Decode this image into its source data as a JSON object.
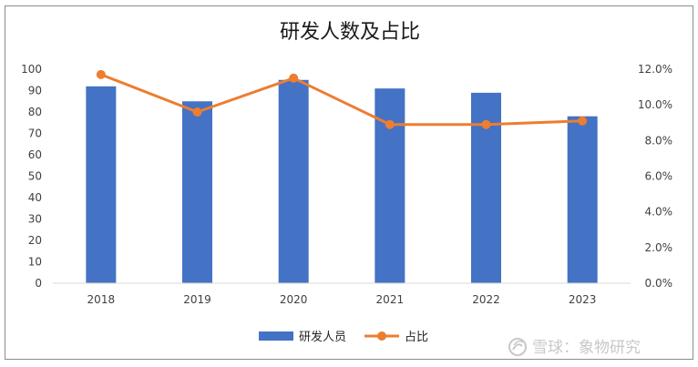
{
  "chart_data": {
    "type": "bar",
    "title": "研发人数及占比",
    "categories": [
      "2018",
      "2019",
      "2020",
      "2021",
      "2022",
      "2023"
    ],
    "series": [
      {
        "name": "研发人员",
        "type": "bar",
        "axis": "left",
        "values": [
          92,
          85,
          95,
          91,
          89,
          78
        ]
      },
      {
        "name": "占比",
        "type": "line",
        "axis": "right",
        "values": [
          11.7,
          9.6,
          11.5,
          8.9,
          8.9,
          9.1
        ]
      }
    ],
    "y_left": {
      "min": 0,
      "max": 100,
      "step": 10
    },
    "y_right": {
      "min": 0,
      "max": 12,
      "step": 2,
      "format": "percent_1dp"
    },
    "grid": false,
    "legend_position": "bottom",
    "colors": {
      "bar": "#4472C4",
      "line": "#ED7D31"
    }
  },
  "watermark": {
    "text": "雪球：象物研究",
    "icon": "snowball-logo-icon"
  }
}
